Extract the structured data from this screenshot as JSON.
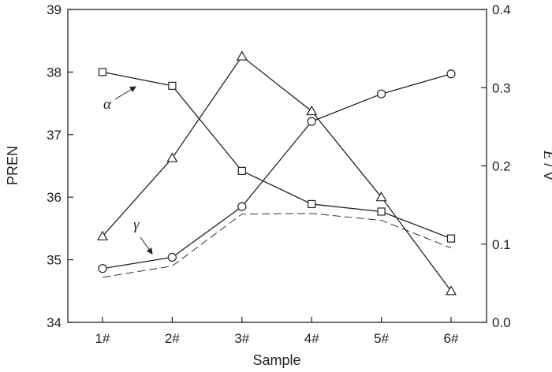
{
  "chart_data": {
    "type": "line",
    "title": "",
    "xlabel": "Sample",
    "ylabel_left": "PREN",
    "ylabel_right_italic": "E",
    "ylabel_right_unit": " / V",
    "categories": [
      "1#",
      "2#",
      "3#",
      "4#",
      "5#",
      "6#"
    ],
    "y_left": {
      "min": 34,
      "max": 39,
      "ticks": [
        "34",
        "35",
        "36",
        "37",
        "38",
        "39"
      ]
    },
    "y_right": {
      "min": 0.0,
      "max": 0.4,
      "ticks": [
        "0.0",
        "0.1",
        "0.2",
        "0.3",
        "0.4"
      ]
    },
    "grid": false,
    "legend": "none",
    "series": [
      {
        "axis": "left",
        "marker": "square",
        "line": "solid",
        "values": [
          38.0,
          37.78,
          36.42,
          35.89,
          35.77,
          35.34
        ]
      },
      {
        "axis": "left",
        "marker": "circle",
        "line": "solid",
        "values": [
          34.86,
          35.04,
          35.85,
          37.21,
          37.65,
          37.97
        ]
      },
      {
        "axis": "left",
        "marker": "none",
        "line": "dashed",
        "values": [
          34.72,
          34.9,
          35.73,
          35.74,
          35.63,
          35.19
        ]
      },
      {
        "axis": "right",
        "marker": "triangle",
        "line": "solid",
        "values": [
          0.11,
          0.21,
          0.34,
          0.27,
          0.16,
          0.04
        ]
      }
    ],
    "annotations": [
      {
        "text": "α",
        "points_to_series": 0
      },
      {
        "text": "γ",
        "points_to_series": 1
      }
    ]
  }
}
